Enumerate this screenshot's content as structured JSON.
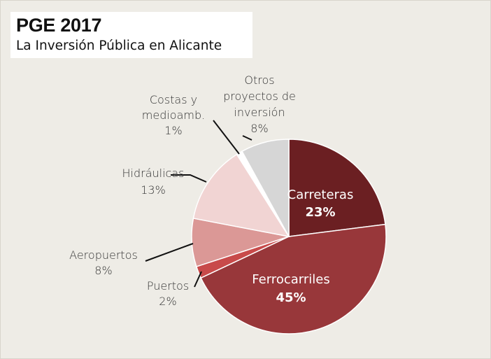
{
  "header": {
    "title": "PGE 2017",
    "subtitle": "La Inversión Pública en Alicante"
  },
  "chart_data": {
    "type": "pie",
    "title": "PGE 2017",
    "subtitle": "La Inversión Pública en Alicante",
    "start_angle_deg": 0,
    "direction": "clockwise",
    "slices": [
      {
        "id": "carreteras",
        "lines": [
          "Carreteras"
        ],
        "pct_label": "23%",
        "value": 23,
        "color": "#6b1f22",
        "label_position": "inside"
      },
      {
        "id": "ferrocarriles",
        "lines": [
          "Ferrocarriles"
        ],
        "pct_label": "45%",
        "value": 45,
        "color": "#98373a",
        "label_position": "inside"
      },
      {
        "id": "puertos",
        "lines": [
          "Puertos"
        ],
        "pct_label": "2%",
        "value": 2,
        "color": "#c84a4a",
        "label_position": "outside"
      },
      {
        "id": "aeropuertos",
        "lines": [
          "Aeropuertos"
        ],
        "pct_label": "8%",
        "value": 8,
        "color": "#db9896",
        "label_position": "outside"
      },
      {
        "id": "hidraulicas",
        "lines": [
          "Hidráulicas"
        ],
        "pct_label": "13%",
        "value": 13,
        "color": "#f1d4d3",
        "label_position": "outside"
      },
      {
        "id": "costas",
        "lines": [
          "Costas y",
          "medioamb."
        ],
        "pct_label": "1%",
        "value": 1,
        "color": "#ffffff",
        "label_position": "outside"
      },
      {
        "id": "otros",
        "lines": [
          "Otros",
          "proyectos de",
          "inversión"
        ],
        "pct_label": "8%",
        "value": 8,
        "color": "#d6d6d6",
        "label_position": "outside"
      }
    ]
  }
}
